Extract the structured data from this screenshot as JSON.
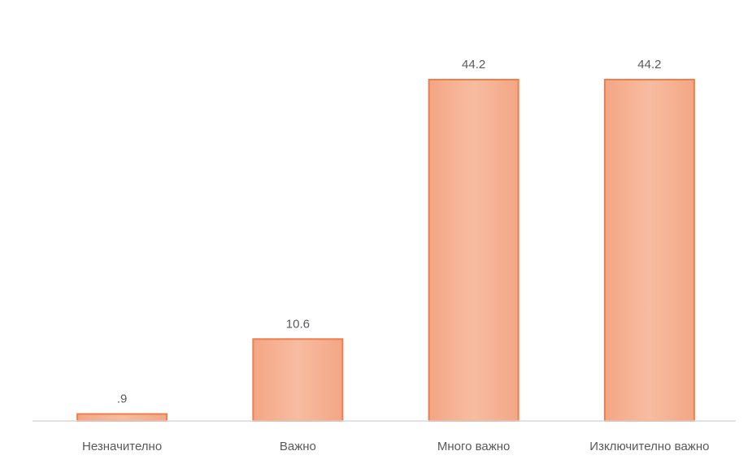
{
  "chart_data": {
    "type": "bar",
    "title": "",
    "xlabel": "",
    "ylabel": "",
    "categories": [
      "Незначително",
      "Важно",
      "Много важно",
      "Изключително важно"
    ],
    "values": [
      0.9,
      10.6,
      44.2,
      44.2
    ],
    "data_labels": [
      ".9",
      "10.6",
      "44.2",
      "44.2"
    ],
    "ylim": [
      0,
      44.2
    ],
    "grid": false,
    "legend": "none",
    "colors": {
      "bar_fill": "#f5b093",
      "bar_stroke": "#ee7e4b",
      "axis": "#d9d9d9",
      "label": "#595959"
    }
  }
}
